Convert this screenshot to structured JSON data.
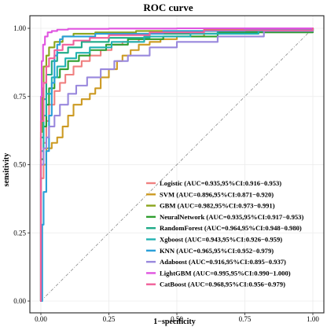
{
  "chart_data": {
    "type": "line",
    "title": "ROC curve",
    "xlabel": "1−specificity",
    "ylabel": "sensitivity",
    "xlim": [
      0,
      1
    ],
    "ylim": [
      0,
      1
    ],
    "xticks": [
      "0.00",
      "0.25",
      "0.50",
      "0.75",
      "1.00"
    ],
    "yticks": [
      "0.00",
      "0.25",
      "0.50",
      "0.75",
      "1.00"
    ],
    "grid": true,
    "reference_line": "diagonal",
    "legend_position": "bottom-right",
    "series": [
      {
        "name": "Logistic (AUC=0.935,95%CI:0.916−0.953)",
        "color": "#f08080",
        "x": [
          0,
          0,
          0.01,
          0.02,
          0.03,
          0.05,
          0.07,
          0.09,
          0.12,
          0.15,
          0.18,
          0.22,
          0.26,
          0.3,
          0.36,
          0.45,
          0.6,
          0.8,
          1.0
        ],
        "y": [
          0,
          0.45,
          0.58,
          0.66,
          0.72,
          0.77,
          0.8,
          0.83,
          0.86,
          0.88,
          0.9,
          0.92,
          0.94,
          0.95,
          0.96,
          0.97,
          0.98,
          0.99,
          1.0
        ]
      },
      {
        "name": "SVM (AUC=0.896,95%CI:0.871−0.920)",
        "color": "#cc9a22",
        "x": [
          0,
          0,
          0.02,
          0.04,
          0.06,
          0.08,
          0.1,
          0.12,
          0.15,
          0.18,
          0.2,
          0.22,
          0.25,
          0.28,
          0.3,
          0.33,
          0.36,
          0.4,
          0.44,
          0.5,
          0.6,
          0.75,
          1.0
        ],
        "y": [
          0,
          0.5,
          0.56,
          0.58,
          0.6,
          0.64,
          0.68,
          0.72,
          0.74,
          0.76,
          0.78,
          0.82,
          0.85,
          0.88,
          0.9,
          0.92,
          0.94,
          0.95,
          0.96,
          0.97,
          0.98,
          0.99,
          1.0
        ]
      },
      {
        "name": "GBM (AUC=0.982,95%CI:0.973−0.991)",
        "color": "#8aa51c",
        "x": [
          0,
          0,
          0.005,
          0.01,
          0.02,
          0.03,
          0.05,
          0.08,
          0.12,
          0.2,
          0.35,
          0.6,
          1.0
        ],
        "y": [
          0,
          0.62,
          0.78,
          0.86,
          0.9,
          0.93,
          0.95,
          0.97,
          0.98,
          0.985,
          0.99,
          0.995,
          1.0
        ]
      },
      {
        "name": "NeuralNetwork (AUC=0.935,95%CI:0.917−0.953)",
        "color": "#2f9e2f",
        "x": [
          0,
          0,
          0.01,
          0.02,
          0.03,
          0.05,
          0.07,
          0.1,
          0.14,
          0.18,
          0.24,
          0.32,
          0.45,
          0.65,
          1.0
        ],
        "y": [
          0,
          0.52,
          0.64,
          0.72,
          0.78,
          0.82,
          0.85,
          0.88,
          0.9,
          0.92,
          0.94,
          0.96,
          0.97,
          0.985,
          1.0
        ]
      },
      {
        "name": "RandomForest (AUC=0.964,95%CI:0.948−0.980)",
        "color": "#1eaa88",
        "x": [
          0,
          0,
          0.01,
          0.02,
          0.04,
          0.06,
          0.1,
          0.15,
          0.25,
          0.4,
          0.65,
          1.0
        ],
        "y": [
          0,
          0.6,
          0.74,
          0.83,
          0.88,
          0.91,
          0.93,
          0.95,
          0.965,
          0.98,
          0.99,
          1.0
        ]
      },
      {
        "name": "Xgboost (AUC=0.943,95%CI:0.926−0.959)",
        "color": "#22b2b2",
        "x": [
          0,
          0,
          0.01,
          0.02,
          0.04,
          0.06,
          0.09,
          0.13,
          0.18,
          0.26,
          0.38,
          0.55,
          0.8,
          1.0
        ],
        "y": [
          0,
          0.55,
          0.68,
          0.76,
          0.82,
          0.86,
          0.89,
          0.91,
          0.93,
          0.95,
          0.97,
          0.98,
          0.99,
          1.0
        ]
      },
      {
        "name": "KNN (AUC=0.965,95%CI:0.952−0.979)",
        "color": "#2a9fd8",
        "x": [
          0,
          0.005,
          0.01,
          0.02,
          0.03,
          0.04,
          0.05,
          0.06,
          0.07,
          0.08,
          0.2,
          0.45,
          0.75,
          1.0
        ],
        "y": [
          0,
          0.28,
          0.4,
          0.55,
          0.68,
          0.8,
          0.9,
          0.94,
          0.96,
          0.97,
          0.98,
          0.99,
          0.995,
          1.0
        ]
      },
      {
        "name": "Adaboost (AUC=0.916,95%CI:0.895−0.937)",
        "color": "#9988dd",
        "x": [
          0,
          0,
          0.01,
          0.02,
          0.03,
          0.05,
          0.07,
          0.1,
          0.13,
          0.17,
          0.22,
          0.27,
          0.32,
          0.4,
          0.5,
          0.65,
          0.82,
          1.0
        ],
        "y": [
          0,
          0.5,
          0.56,
          0.6,
          0.64,
          0.68,
          0.72,
          0.76,
          0.79,
          0.82,
          0.85,
          0.88,
          0.9,
          0.93,
          0.95,
          0.97,
          0.99,
          1.0
        ]
      },
      {
        "name": "LightGBM (AUC=0.995,95%CI:0.990−1.000)",
        "color": "#e055e0",
        "x": [
          0,
          0,
          0.003,
          0.008,
          0.015,
          0.025,
          0.04,
          0.06,
          0.1,
          0.25,
          0.5,
          1.0
        ],
        "y": [
          0,
          0.75,
          0.88,
          0.94,
          0.97,
          0.985,
          0.99,
          0.995,
          0.998,
          0.999,
          1.0,
          1.0
        ]
      },
      {
        "name": "CatBoost (AUC=0.968,95%CI:0.956−0.979)",
        "color": "#f0609a",
        "x": [
          0,
          0,
          0.01,
          0.02,
          0.03,
          0.05,
          0.08,
          0.12,
          0.18,
          0.25,
          0.4,
          0.6,
          1.0
        ],
        "y": [
          0,
          0.66,
          0.8,
          0.86,
          0.89,
          0.92,
          0.94,
          0.955,
          0.965,
          0.975,
          0.985,
          0.993,
          1.0
        ]
      }
    ]
  }
}
